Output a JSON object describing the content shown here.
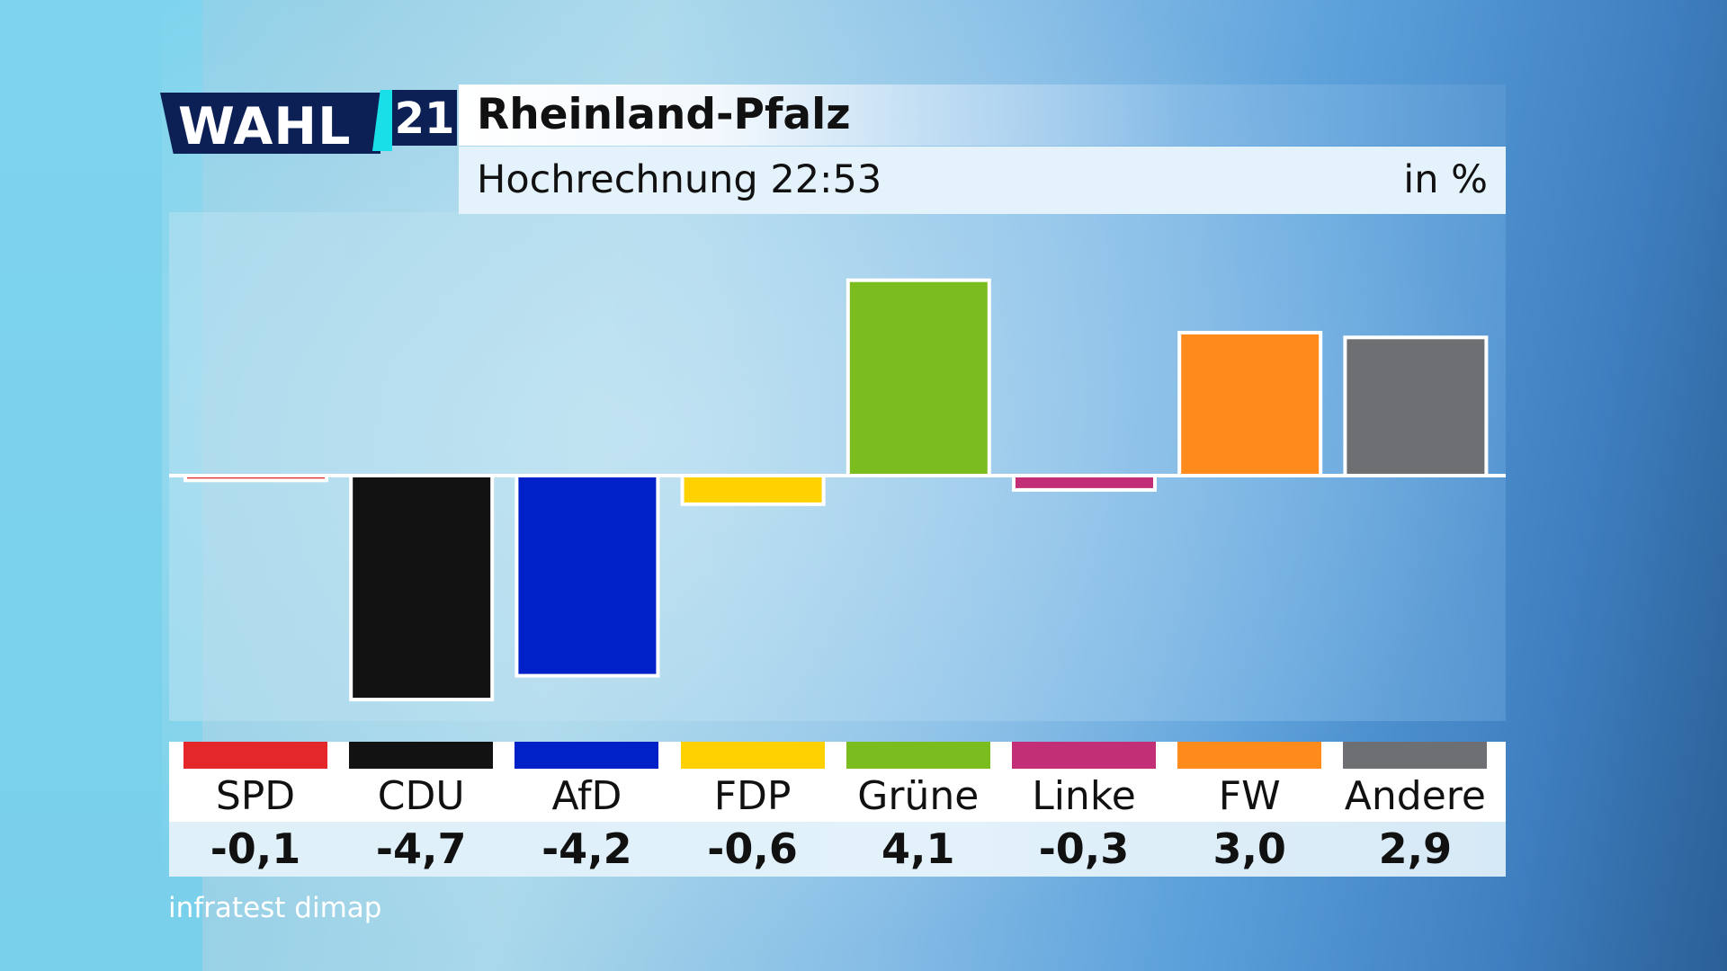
{
  "logo": {
    "wahl": "WAHL",
    "year": "21"
  },
  "header": {
    "title": "Rheinland-Pfalz",
    "subtitle": "Hochrechnung 22:53",
    "unit": "in %"
  },
  "source": "infratest dimap",
  "chart_data": {
    "type": "bar",
    "title": "Rheinland-Pfalz",
    "subtitle": "Hochrechnung 22:53",
    "unit": "in %",
    "categories": [
      "SPD",
      "CDU",
      "AfD",
      "FDP",
      "Grüne",
      "Linke",
      "FW",
      "Andere"
    ],
    "values": [
      -0.1,
      -4.7,
      -4.2,
      -0.6,
      4.1,
      -0.3,
      3.0,
      2.9
    ],
    "value_labels": [
      "-0,1",
      "-4,7",
      "-4,2",
      "-0,6",
      "4,1",
      "-0,3",
      "3,0",
      "2,9"
    ],
    "colors": [
      "#e3272b",
      "#121212",
      "#0021c8",
      "#ffd100",
      "#7bbd1e",
      "#c22f76",
      "#ff8b1c",
      "#6e6f72"
    ],
    "ylim": [
      -5.2,
      5.2
    ],
    "grid": false,
    "legend": "bottom"
  }
}
